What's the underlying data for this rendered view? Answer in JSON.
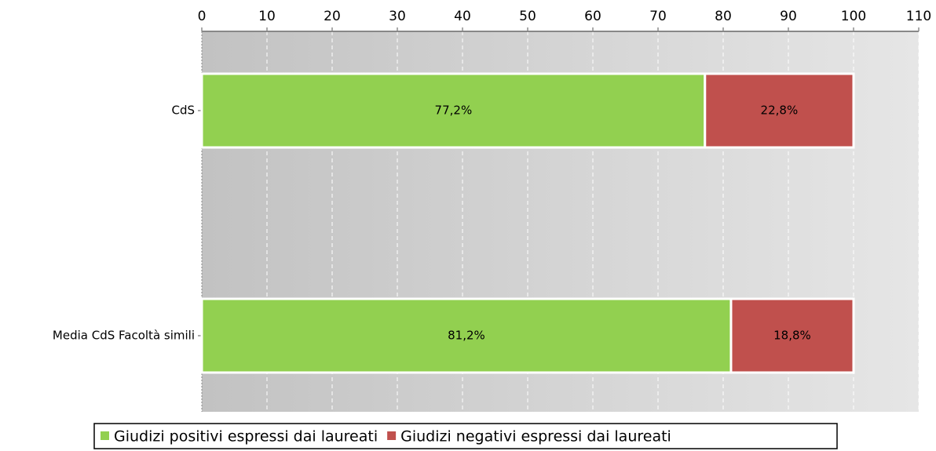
{
  "chart_data": {
    "type": "bar",
    "orientation": "horizontal",
    "stacked": true,
    "categories": [
      "CdS",
      "Media CdS Facoltà simili"
    ],
    "series": [
      {
        "name": "Giudizi positivi espressi dai laureati",
        "color": "#92d050",
        "values": [
          77.2,
          81.2
        ],
        "value_labels": [
          "77,2%",
          "81,2%"
        ]
      },
      {
        "name": "Giudizi negativi espressi dai laureati",
        "color": "#c0504d",
        "values": [
          22.8,
          18.8
        ],
        "value_labels": [
          "22,8%",
          "18,8%"
        ]
      }
    ],
    "xlim": [
      0,
      110
    ],
    "xticks": [
      0,
      10,
      20,
      30,
      40,
      50,
      60,
      70,
      80,
      90,
      100,
      110
    ],
    "grid": true,
    "legend": "bottom"
  }
}
